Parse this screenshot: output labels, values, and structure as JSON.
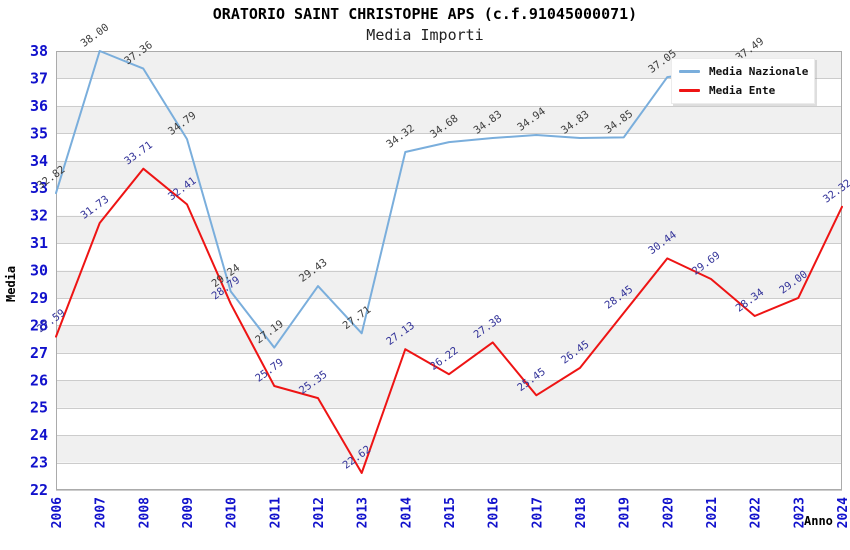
{
  "header": {
    "title": "ORATORIO SAINT CHRISTOPHE APS (c.f.91045000071)",
    "subtitle": "Media Importi"
  },
  "legend": {
    "items": [
      {
        "label": "Media Nazionale",
        "color": "#7aaedc"
      },
      {
        "label": "Media Ente",
        "color": "#ee1414"
      }
    ]
  },
  "chart_data": {
    "type": "line",
    "title": "ORATORIO SAINT CHRISTOPHE APS (c.f.91045000071)",
    "subtitle": "Media Importi",
    "xlabel": "Anno",
    "ylabel": "Media",
    "x": [
      2006,
      2007,
      2008,
      2009,
      2010,
      2011,
      2012,
      2013,
      2014,
      2015,
      2016,
      2017,
      2018,
      2019,
      2020,
      2021,
      2022,
      2023,
      2024
    ],
    "ylim": [
      22,
      38
    ],
    "ytick_step": 1,
    "grid": true,
    "legend_position": "top-right",
    "band_colors": [
      "#ffffff",
      "#f0f0f0"
    ],
    "gridline_color": "#cccccc",
    "plot_border_color": "#ababab",
    "axis_tick_color": "#1111cc",
    "series": [
      {
        "name": "Media Nazionale",
        "color": "#7aaedc",
        "label_color": "#3d3d3d",
        "values": [
          32.82,
          38.0,
          37.36,
          34.79,
          29.24,
          27.19,
          29.43,
          27.71,
          34.32,
          34.68,
          34.83,
          34.94,
          34.83,
          34.85,
          37.05,
          null,
          37.49,
          null,
          null
        ]
      },
      {
        "name": "Media Ente",
        "color": "#ee1414",
        "label_color": "#333399",
        "values": [
          27.59,
          31.73,
          33.71,
          32.41,
          28.79,
          25.79,
          25.35,
          22.62,
          27.13,
          26.22,
          27.38,
          25.45,
          26.45,
          28.45,
          30.44,
          29.69,
          28.34,
          29.0,
          32.32
        ]
      }
    ]
  }
}
